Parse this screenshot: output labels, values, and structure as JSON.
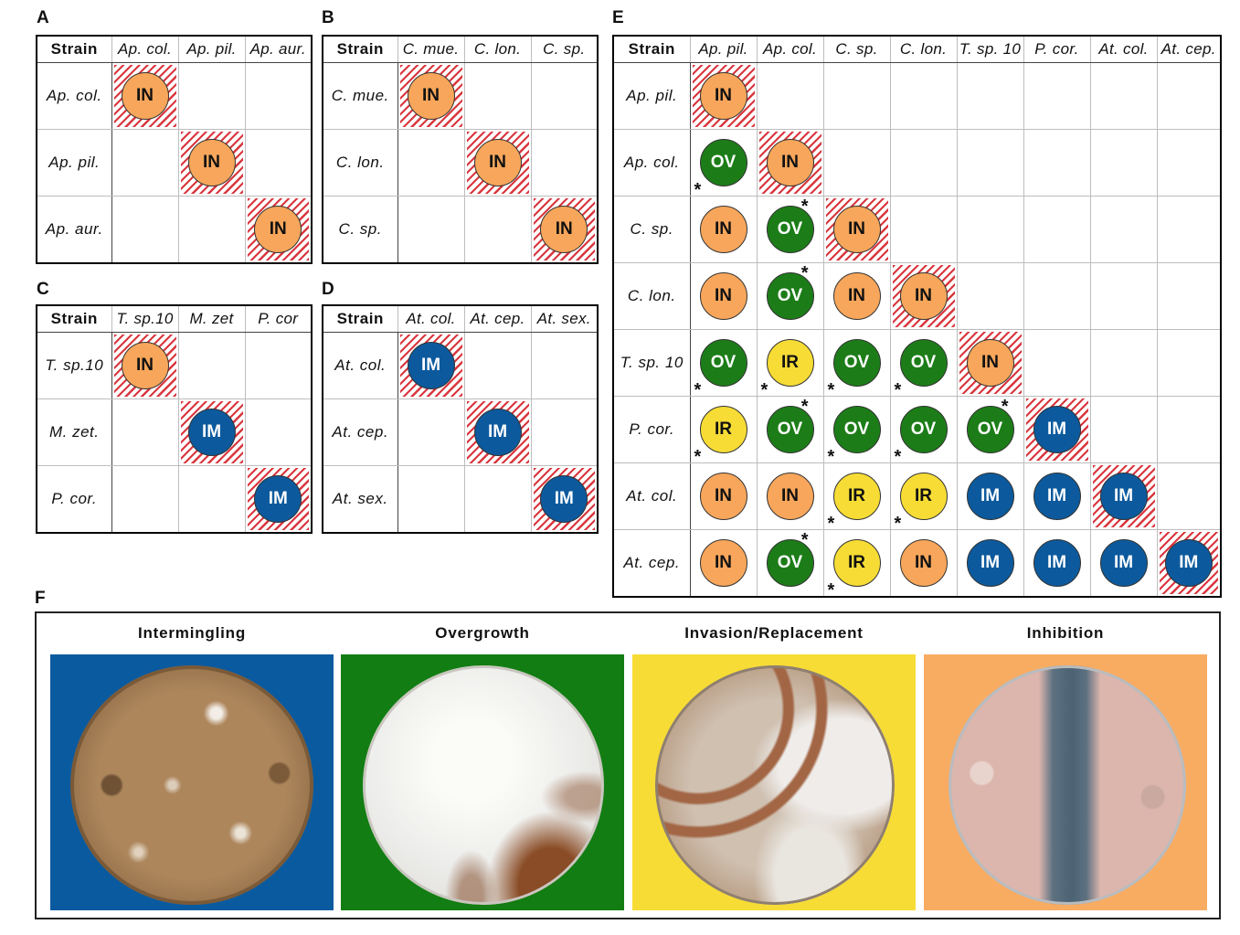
{
  "panels": {
    "A": {
      "letter": "A",
      "strain_label": "Strain",
      "columns": [
        "Ap. col.",
        "Ap. pil.",
        "Ap. aur."
      ],
      "rows": [
        {
          "label": "Ap. col.",
          "cells": [
            {
              "code": "IN",
              "self": true
            },
            null,
            null
          ]
        },
        {
          "label": "Ap. pil.",
          "cells": [
            null,
            {
              "code": "IN",
              "self": true
            },
            null
          ]
        },
        {
          "label": "Ap. aur.",
          "cells": [
            null,
            null,
            {
              "code": "IN",
              "self": true
            }
          ]
        }
      ]
    },
    "B": {
      "letter": "B",
      "strain_label": "Strain",
      "columns": [
        "C. mue.",
        "C. lon.",
        "C. sp."
      ],
      "rows": [
        {
          "label": "C. mue.",
          "cells": [
            {
              "code": "IN",
              "self": true
            },
            null,
            null
          ]
        },
        {
          "label": "C. lon.",
          "cells": [
            null,
            {
              "code": "IN",
              "self": true
            },
            null
          ]
        },
        {
          "label": "C. sp.",
          "cells": [
            null,
            null,
            {
              "code": "IN",
              "self": true
            }
          ]
        }
      ]
    },
    "C": {
      "letter": "C",
      "strain_label": "Strain",
      "columns": [
        "T. sp.10",
        "M. zet",
        "P. cor"
      ],
      "rows": [
        {
          "label": "T. sp.10",
          "cells": [
            {
              "code": "IN",
              "self": true
            },
            null,
            null
          ]
        },
        {
          "label": "M. zet.",
          "cells": [
            null,
            {
              "code": "IM",
              "self": true
            },
            null
          ]
        },
        {
          "label": "P. cor.",
          "cells": [
            null,
            null,
            {
              "code": "IM",
              "self": true
            }
          ]
        }
      ]
    },
    "D": {
      "letter": "D",
      "strain_label": "Strain",
      "columns": [
        "At. col.",
        "At. cep.",
        "At. sex."
      ],
      "rows": [
        {
          "label": "At. col.",
          "cells": [
            {
              "code": "IM",
              "self": true
            },
            null,
            null
          ]
        },
        {
          "label": "At. cep.",
          "cells": [
            null,
            {
              "code": "IM",
              "self": true
            },
            null
          ]
        },
        {
          "label": "At. sex.",
          "cells": [
            null,
            null,
            {
              "code": "IM",
              "self": true
            }
          ]
        }
      ]
    },
    "E": {
      "letter": "E",
      "strain_label": "Strain",
      "columns": [
        "Ap. pil.",
        "Ap. col.",
        "C. sp.",
        "C. lon.",
        "T. sp. 10",
        "P. cor.",
        "At. col.",
        "At. cep."
      ],
      "rows": [
        {
          "label": "Ap. pil.",
          "cells": [
            {
              "code": "IN",
              "self": true
            }
          ]
        },
        {
          "label": "Ap. col.",
          "cells": [
            {
              "code": "OV",
              "star": "bl"
            },
            {
              "code": "IN",
              "self": true
            }
          ]
        },
        {
          "label": "C. sp.",
          "cells": [
            {
              "code": "IN"
            },
            {
              "code": "OV",
              "star": "tr"
            },
            {
              "code": "IN",
              "self": true
            }
          ]
        },
        {
          "label": "C. lon.",
          "cells": [
            {
              "code": "IN"
            },
            {
              "code": "OV",
              "star": "tr"
            },
            {
              "code": "IN"
            },
            {
              "code": "IN",
              "self": true
            }
          ]
        },
        {
          "label": "T. sp. 10",
          "cells": [
            {
              "code": "OV",
              "star": "bl"
            },
            {
              "code": "IR",
              "star": "bl"
            },
            {
              "code": "OV",
              "star": "bl"
            },
            {
              "code": "OV",
              "star": "bl"
            },
            {
              "code": "IN",
              "self": true
            }
          ]
        },
        {
          "label": "P. cor.",
          "cells": [
            {
              "code": "IR",
              "star": "bl"
            },
            {
              "code": "OV",
              "star": "tr"
            },
            {
              "code": "OV",
              "star": "bl"
            },
            {
              "code": "OV",
              "star": "bl"
            },
            {
              "code": "OV",
              "star": "tr"
            },
            {
              "code": "IM",
              "self": true
            }
          ]
        },
        {
          "label": "At. col.",
          "cells": [
            {
              "code": "IN"
            },
            {
              "code": "IN"
            },
            {
              "code": "IR",
              "star": "bl"
            },
            {
              "code": "IR",
              "star": "bl"
            },
            {
              "code": "IM"
            },
            {
              "code": "IM"
            },
            {
              "code": "IM",
              "self": true
            }
          ]
        },
        {
          "label": "At. cep.",
          "cells": [
            {
              "code": "IN"
            },
            {
              "code": "OV",
              "star": "tr"
            },
            {
              "code": "IR",
              "star": "bl"
            },
            {
              "code": "IN"
            },
            {
              "code": "IM"
            },
            {
              "code": "IM"
            },
            {
              "code": "IM"
            },
            {
              "code": "IM",
              "self": true
            }
          ]
        }
      ]
    }
  },
  "panel_f": {
    "letter": "F",
    "items": [
      {
        "title": "Intermingling",
        "bg": "#0a5aa0"
      },
      {
        "title": "Overgrowth",
        "bg": "#127d12"
      },
      {
        "title": "Invasion/Replacement",
        "bg": "#f7dc35"
      },
      {
        "title": "Inhibition",
        "bg": "#f8ac62"
      }
    ]
  },
  "colors": {
    "IN": "#f7a65b",
    "IM": "#0c5a9d",
    "OV": "#1c7d18",
    "IR": "#f6dc35",
    "hatch": "#d9363e"
  },
  "star_symbol": "*"
}
